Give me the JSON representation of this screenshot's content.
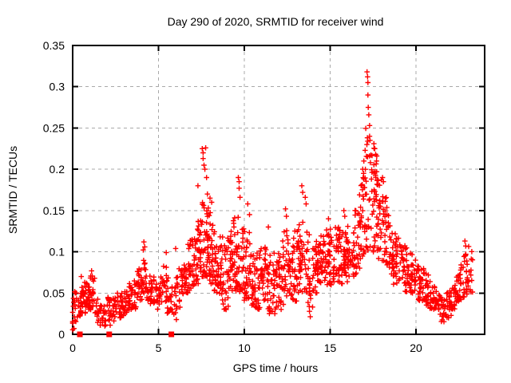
{
  "chart_data": {
    "type": "scatter",
    "title": "Day 290 of 2020, SRMTID for receiver wind",
    "xlabel": "GPS time / hours",
    "ylabel": "SRMTID / TECUs",
    "xlim": [
      0,
      24
    ],
    "ylim": [
      0,
      0.35
    ],
    "xticks": [
      0,
      5,
      10,
      15,
      20
    ],
    "xtick_labels": [
      "0",
      "5",
      "10",
      "15",
      "20"
    ],
    "yticks": [
      0,
      0.05,
      0.1,
      0.15,
      0.2,
      0.25,
      0.3,
      0.35
    ],
    "ytick_labels": [
      "0",
      "0.05",
      "0.1",
      "0.15",
      "0.2",
      "0.25",
      "0.3",
      "0.35"
    ],
    "grid": true,
    "grid_style": "dashed",
    "legend": "none",
    "marker": "plus",
    "marker_color": "#ff0000",
    "series": [
      {
        "name": "SRMTID",
        "note": "dense scatter ~1800 pts; envelope_bins = [t_start_h, t_end_h, y_low, y_high, n_points] read off plot",
        "envelope_bins": [
          [
            0.0,
            0.25,
            0.005,
            0.055,
            18
          ],
          [
            0.25,
            0.5,
            0.02,
            0.05,
            14
          ],
          [
            0.5,
            0.75,
            0.025,
            0.06,
            20
          ],
          [
            0.75,
            1.0,
            0.03,
            0.065,
            20
          ],
          [
            1.0,
            1.25,
            0.03,
            0.075,
            22
          ],
          [
            1.25,
            1.5,
            0.015,
            0.045,
            12
          ],
          [
            1.5,
            1.75,
            0.01,
            0.035,
            12
          ],
          [
            1.75,
            2.0,
            0.01,
            0.035,
            12
          ],
          [
            2.0,
            2.25,
            0.01,
            0.045,
            16
          ],
          [
            2.25,
            2.5,
            0.015,
            0.045,
            14
          ],
          [
            2.5,
            2.75,
            0.02,
            0.05,
            14
          ],
          [
            2.75,
            3.0,
            0.02,
            0.05,
            14
          ],
          [
            3.0,
            3.25,
            0.025,
            0.055,
            16
          ],
          [
            3.25,
            3.5,
            0.03,
            0.065,
            18
          ],
          [
            3.5,
            3.75,
            0.03,
            0.07,
            16
          ],
          [
            3.75,
            4.0,
            0.04,
            0.08,
            16
          ],
          [
            4.0,
            4.25,
            0.05,
            0.105,
            20
          ],
          [
            4.25,
            4.5,
            0.04,
            0.085,
            16
          ],
          [
            4.5,
            4.75,
            0.035,
            0.07,
            14
          ],
          [
            4.75,
            5.0,
            0.03,
            0.065,
            14
          ],
          [
            5.0,
            5.25,
            0.035,
            0.07,
            14
          ],
          [
            5.25,
            5.5,
            0.04,
            0.09,
            16
          ],
          [
            5.5,
            5.75,
            0.025,
            0.06,
            12
          ],
          [
            5.75,
            6.0,
            0.015,
            0.05,
            12
          ],
          [
            6.0,
            6.25,
            0.03,
            0.07,
            14
          ],
          [
            6.25,
            6.5,
            0.04,
            0.08,
            16
          ],
          [
            6.5,
            6.75,
            0.05,
            0.095,
            18
          ],
          [
            6.75,
            7.0,
            0.055,
            0.115,
            22
          ],
          [
            7.0,
            7.25,
            0.06,
            0.12,
            22
          ],
          [
            7.25,
            7.5,
            0.07,
            0.14,
            24
          ],
          [
            7.5,
            7.75,
            0.07,
            0.16,
            26
          ],
          [
            7.75,
            8.0,
            0.07,
            0.16,
            26
          ],
          [
            8.0,
            8.25,
            0.06,
            0.14,
            24
          ],
          [
            8.25,
            8.5,
            0.05,
            0.13,
            24
          ],
          [
            8.5,
            8.75,
            0.04,
            0.12,
            24
          ],
          [
            8.75,
            9.0,
            0.03,
            0.11,
            22
          ],
          [
            9.0,
            9.25,
            0.05,
            0.12,
            22
          ],
          [
            9.25,
            9.5,
            0.05,
            0.14,
            24
          ],
          [
            9.5,
            9.75,
            0.05,
            0.15,
            24
          ],
          [
            9.75,
            10.0,
            0.05,
            0.13,
            22
          ],
          [
            10.0,
            10.25,
            0.04,
            0.12,
            22
          ],
          [
            10.25,
            10.5,
            0.04,
            0.13,
            22
          ],
          [
            10.5,
            10.75,
            0.03,
            0.1,
            20
          ],
          [
            10.75,
            11.0,
            0.03,
            0.1,
            20
          ],
          [
            11.0,
            11.25,
            0.04,
            0.11,
            20
          ],
          [
            11.25,
            11.5,
            0.03,
            0.1,
            20
          ],
          [
            11.5,
            11.75,
            0.025,
            0.09,
            18
          ],
          [
            11.75,
            12.0,
            0.03,
            0.1,
            18
          ],
          [
            12.0,
            12.25,
            0.03,
            0.11,
            18
          ],
          [
            12.25,
            12.5,
            0.04,
            0.13,
            20
          ],
          [
            12.5,
            12.75,
            0.05,
            0.12,
            20
          ],
          [
            12.75,
            13.0,
            0.04,
            0.12,
            20
          ],
          [
            13.0,
            13.25,
            0.05,
            0.13,
            20
          ],
          [
            13.25,
            13.5,
            0.05,
            0.14,
            22
          ],
          [
            13.5,
            13.75,
            0.05,
            0.13,
            20
          ],
          [
            13.75,
            14.0,
            0.015,
            0.1,
            16
          ],
          [
            14.0,
            14.25,
            0.05,
            0.11,
            20
          ],
          [
            14.25,
            14.5,
            0.06,
            0.12,
            20
          ],
          [
            14.5,
            14.75,
            0.06,
            0.12,
            20
          ],
          [
            14.75,
            15.0,
            0.06,
            0.13,
            20
          ],
          [
            15.0,
            15.25,
            0.06,
            0.12,
            22
          ],
          [
            15.25,
            15.5,
            0.07,
            0.13,
            22
          ],
          [
            15.5,
            15.75,
            0.06,
            0.13,
            22
          ],
          [
            15.75,
            16.0,
            0.07,
            0.14,
            22
          ],
          [
            16.0,
            16.25,
            0.06,
            0.12,
            20
          ],
          [
            16.25,
            16.5,
            0.07,
            0.13,
            20
          ],
          [
            16.5,
            16.75,
            0.08,
            0.16,
            22
          ],
          [
            16.75,
            17.0,
            0.09,
            0.19,
            22
          ],
          [
            17.0,
            17.25,
            0.1,
            0.25,
            24
          ],
          [
            17.25,
            17.5,
            0.1,
            0.22,
            24
          ],
          [
            17.5,
            17.75,
            0.1,
            0.23,
            22
          ],
          [
            17.75,
            18.0,
            0.09,
            0.19,
            22
          ],
          [
            18.0,
            18.25,
            0.08,
            0.17,
            22
          ],
          [
            18.25,
            18.5,
            0.08,
            0.15,
            20
          ],
          [
            18.5,
            18.75,
            0.07,
            0.13,
            20
          ],
          [
            18.75,
            19.0,
            0.06,
            0.12,
            20
          ],
          [
            19.0,
            19.25,
            0.06,
            0.11,
            18
          ],
          [
            19.25,
            19.5,
            0.05,
            0.11,
            18
          ],
          [
            19.5,
            19.75,
            0.05,
            0.1,
            18
          ],
          [
            19.75,
            20.0,
            0.05,
            0.09,
            18
          ],
          [
            20.0,
            20.25,
            0.04,
            0.09,
            18
          ],
          [
            20.25,
            20.5,
            0.04,
            0.08,
            18
          ],
          [
            20.5,
            20.75,
            0.035,
            0.075,
            16
          ],
          [
            20.75,
            21.0,
            0.03,
            0.07,
            16
          ],
          [
            21.0,
            21.25,
            0.03,
            0.06,
            16
          ],
          [
            21.25,
            21.5,
            0.02,
            0.055,
            16
          ],
          [
            21.5,
            21.75,
            0.015,
            0.05,
            16
          ],
          [
            21.75,
            22.0,
            0.02,
            0.055,
            16
          ],
          [
            22.0,
            22.25,
            0.03,
            0.06,
            16
          ],
          [
            22.25,
            22.5,
            0.035,
            0.07,
            18
          ],
          [
            22.5,
            22.75,
            0.04,
            0.085,
            20
          ],
          [
            22.75,
            23.0,
            0.045,
            0.1,
            20
          ],
          [
            23.0,
            23.25,
            0.05,
            0.11,
            14
          ]
        ],
        "outliers": [
          [
            0.5,
            0.07
          ],
          [
            1.1,
            0.077
          ],
          [
            4.15,
            0.112
          ],
          [
            4.2,
            0.106
          ],
          [
            5.45,
            0.099
          ],
          [
            6.0,
            0.104
          ],
          [
            7.3,
            0.18
          ],
          [
            7.55,
            0.225
          ],
          [
            7.6,
            0.22
          ],
          [
            7.6,
            0.213
          ],
          [
            7.65,
            0.205
          ],
          [
            7.7,
            0.2
          ],
          [
            7.75,
            0.226
          ],
          [
            7.8,
            0.19
          ],
          [
            7.85,
            0.17
          ],
          [
            8.0,
            0.165
          ],
          [
            8.1,
            0.16
          ],
          [
            9.65,
            0.19
          ],
          [
            9.7,
            0.185
          ],
          [
            9.7,
            0.177
          ],
          [
            9.75,
            0.166
          ],
          [
            10.2,
            0.158
          ],
          [
            10.3,
            0.145
          ],
          [
            11.4,
            0.13
          ],
          [
            12.4,
            0.152
          ],
          [
            12.45,
            0.143
          ],
          [
            13.35,
            0.18
          ],
          [
            13.4,
            0.172
          ],
          [
            13.55,
            0.166
          ],
          [
            13.6,
            0.158
          ],
          [
            14.9,
            0.14
          ],
          [
            15.8,
            0.15
          ],
          [
            15.85,
            0.143
          ],
          [
            16.9,
            0.2
          ],
          [
            16.95,
            0.195
          ],
          [
            17.15,
            0.318
          ],
          [
            17.18,
            0.312
          ],
          [
            17.2,
            0.305
          ],
          [
            17.2,
            0.29
          ],
          [
            17.22,
            0.275
          ],
          [
            17.25,
            0.266
          ],
          [
            17.3,
            0.253
          ],
          [
            17.3,
            0.24
          ],
          [
            17.32,
            0.235
          ],
          [
            17.55,
            0.231
          ],
          [
            17.6,
            0.225
          ],
          [
            17.65,
            0.218
          ],
          [
            17.7,
            0.21
          ],
          [
            18.05,
            0.19
          ],
          [
            18.1,
            0.185
          ],
          [
            22.85,
            0.113
          ],
          [
            22.9,
            0.107
          ]
        ]
      }
    ],
    "zero_markers": {
      "shape": "filled-square",
      "y": 0,
      "x": [
        0.42,
        2.13,
        5.75
      ]
    }
  },
  "colors": {
    "data": "#ff0000",
    "axis": "#000000",
    "grid": "#a9a9a9",
    "background": "#ffffff",
    "text": "#000000"
  }
}
